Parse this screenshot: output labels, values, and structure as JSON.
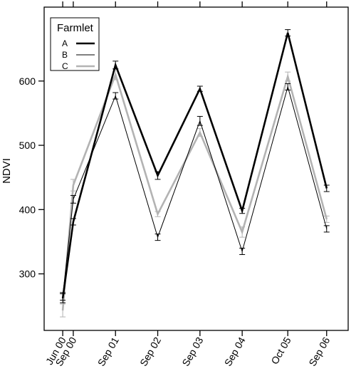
{
  "chart_data": {
    "type": "line",
    "title": "",
    "xlabel": "",
    "ylabel": "NDVI",
    "ylim": [
      212,
      715
    ],
    "yticks": [
      300,
      400,
      500,
      600
    ],
    "categories": [
      "Jun 00",
      "Sep 00",
      "Sep 01",
      "Sep 02",
      "Sep 03",
      "Sep 04",
      "Oct 05",
      "Sep 06"
    ],
    "x_years": [
      2000.42,
      2000.67,
      2001.67,
      2002.67,
      2003.67,
      2004.67,
      2005.75,
      2006.67
    ],
    "xlim": [
      1999.98,
      2007.18
    ],
    "top_ticks": [
      2000.42,
      2000.67,
      2001.67,
      2002.67,
      2003.67,
      2004.67,
      2005.75,
      2006.67
    ],
    "grid": false,
    "legend": {
      "title": "Farmlet",
      "position": "top-left"
    },
    "series": [
      {
        "name": "A",
        "color": "#000000",
        "values": [
          262,
          381,
          625,
          453,
          588,
          398,
          675,
          433
        ],
        "error": [
          7,
          5,
          6,
          6,
          4,
          4,
          5,
          5
        ]
      },
      {
        "name": "B",
        "color": "#000000",
        "values": [
          265,
          416,
          577,
          357,
          538,
          335,
          591,
          370
        ],
        "error": [
          6,
          6,
          5,
          5,
          7,
          5,
          5,
          5
        ]
      },
      {
        "name": "C",
        "color": "#b3b3b3",
        "values": [
          243,
          438,
          610,
          393,
          520,
          365,
          607,
          385
        ],
        "error": [
          10,
          9,
          8,
          4,
          6,
          8,
          7,
          5
        ]
      }
    ]
  }
}
